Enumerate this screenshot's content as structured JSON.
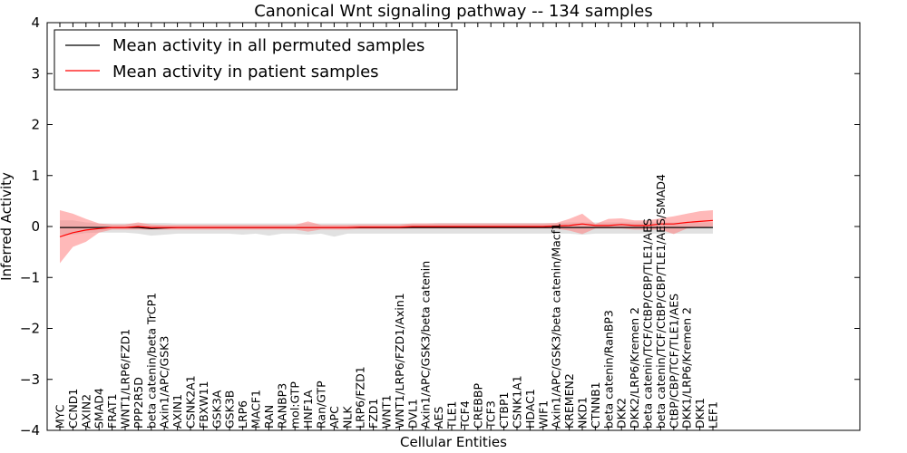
{
  "chart_data": {
    "type": "line",
    "title": "Canonical Wnt signaling pathway -- 134 samples",
    "xlabel": "Cellular Entities",
    "ylabel": "Inferred Activity",
    "ylim": [
      -4,
      4
    ],
    "yticks": [
      -4,
      -3,
      -2,
      -1,
      0,
      1,
      2,
      3,
      4
    ],
    "legend_position": "upper-left",
    "categories": [
      "MYC",
      "CCND1",
      "AXIN2",
      "SMAD4",
      "FRAT1",
      "WNT1/LRP6/FZD1",
      "PPP2R5D",
      "beta catenin/beta TrCP1",
      "Axin1/APC/GSK3",
      "AXIN1",
      "CSNK2A1",
      "FBXW11",
      "GSK3A",
      "GSK3B",
      "LRP6",
      "MACF1",
      "RAN",
      "RANBP3",
      "mol:GTP",
      "HNF1A",
      "Ran/GTP",
      "APC",
      "NLK",
      "LRP6/FZD1",
      "FZD1",
      "WNT1",
      "WNT1/LRP6/FZD1/Axin1",
      "DVL1",
      "Axin1/APC/GSK3/beta catenin",
      "AES",
      "TLE1",
      "TCF4",
      "CREBBP",
      "TCF3",
      "CTBP1",
      "CSNK1A1",
      "HDAC1",
      "WIF1",
      "Axin1/APC/GSK3/beta catenin/Macf1",
      "KREMEN2",
      "NKD1",
      "CTNNB1",
      "beta catenin/RanBP3",
      "DKK2",
      "DKK2/LRP6/Kremen 2",
      "beta catenin/TCF/CtBP/CBP/TLE1/AES",
      "beta catenin/TCF/CtBP/CBP/TLE1/AES/SMAD4",
      "CtBP/CBP/TCF/TLE1/AES",
      "DKK1/LRP6/Kremen 2",
      "DKK1",
      "LEF1"
    ],
    "series": [
      {
        "name": "Mean activity in all permuted samples",
        "color": "#000000",
        "band_color": "#bdbdbd",
        "values": [
          -0.02,
          -0.02,
          -0.02,
          -0.02,
          -0.02,
          -0.02,
          -0.02,
          -0.04,
          -0.03,
          -0.02,
          -0.02,
          -0.02,
          -0.02,
          -0.02,
          -0.02,
          -0.02,
          -0.02,
          -0.02,
          -0.02,
          -0.02,
          -0.02,
          -0.02,
          -0.02,
          -0.02,
          -0.02,
          -0.02,
          -0.02,
          -0.02,
          -0.02,
          -0.02,
          -0.02,
          -0.02,
          -0.02,
          -0.02,
          -0.02,
          -0.02,
          -0.02,
          -0.02,
          -0.02,
          -0.02,
          -0.02,
          -0.02,
          -0.02,
          -0.02,
          -0.02,
          -0.02,
          -0.02,
          -0.02,
          -0.02,
          -0.02,
          -0.02
        ],
        "upper": [
          0.12,
          0.12,
          0.08,
          0.06,
          0.06,
          0.06,
          0.06,
          0.07,
          0.07,
          0.06,
          0.06,
          0.06,
          0.06,
          0.06,
          0.06,
          0.06,
          0.06,
          0.06,
          0.06,
          0.06,
          0.06,
          0.06,
          0.06,
          0.06,
          0.06,
          0.06,
          0.06,
          0.06,
          0.06,
          0.07,
          0.07,
          0.07,
          0.07,
          0.07,
          0.07,
          0.07,
          0.07,
          0.07,
          0.07,
          0.08,
          0.08,
          0.08,
          0.08,
          0.08,
          0.08,
          0.08,
          0.08,
          0.08,
          0.08,
          0.08,
          0.08
        ],
        "lower": [
          -0.16,
          -0.16,
          -0.13,
          -0.12,
          -0.12,
          -0.12,
          -0.14,
          -0.18,
          -0.16,
          -0.14,
          -0.14,
          -0.14,
          -0.14,
          -0.14,
          -0.16,
          -0.14,
          -0.18,
          -0.14,
          -0.14,
          -0.16,
          -0.14,
          -0.2,
          -0.14,
          -0.14,
          -0.14,
          -0.14,
          -0.14,
          -0.14,
          -0.14,
          -0.14,
          -0.14,
          -0.14,
          -0.14,
          -0.14,
          -0.14,
          -0.14,
          -0.14,
          -0.14,
          -0.14,
          -0.14,
          -0.16,
          -0.14,
          -0.14,
          -0.14,
          -0.14,
          -0.14,
          -0.14,
          -0.14,
          -0.14,
          -0.14,
          -0.14
        ]
      },
      {
        "name": "Mean activity in patient samples",
        "color": "#ff0000",
        "band_color": "#ff7f7f",
        "values": [
          -0.2,
          -0.12,
          -0.07,
          -0.04,
          -0.02,
          -0.02,
          0.0,
          -0.02,
          -0.02,
          -0.02,
          -0.02,
          -0.02,
          -0.02,
          -0.02,
          -0.02,
          -0.02,
          -0.02,
          -0.02,
          -0.02,
          -0.02,
          -0.02,
          -0.02,
          -0.02,
          -0.01,
          -0.01,
          -0.01,
          -0.01,
          0.0,
          0.0,
          0.0,
          0.0,
          0.0,
          0.0,
          0.0,
          0.0,
          0.0,
          0.0,
          0.0,
          0.01,
          0.02,
          0.05,
          0.02,
          0.02,
          0.04,
          0.02,
          0.02,
          0.05,
          0.05,
          0.08,
          0.1,
          0.12
        ],
        "upper": [
          0.32,
          0.25,
          0.15,
          0.06,
          0.04,
          0.04,
          0.08,
          0.04,
          0.03,
          0.03,
          0.03,
          0.03,
          0.03,
          0.03,
          0.03,
          0.03,
          0.03,
          0.03,
          0.03,
          0.1,
          0.03,
          0.03,
          0.03,
          0.04,
          0.04,
          0.04,
          0.04,
          0.06,
          0.06,
          0.06,
          0.06,
          0.06,
          0.06,
          0.06,
          0.06,
          0.06,
          0.06,
          0.06,
          0.07,
          0.15,
          0.25,
          0.05,
          0.15,
          0.16,
          0.12,
          0.12,
          0.16,
          0.2,
          0.25,
          0.3,
          0.32
        ],
        "lower": [
          -0.72,
          -0.4,
          -0.3,
          -0.12,
          -0.06,
          -0.06,
          -0.06,
          -0.06,
          -0.06,
          -0.06,
          -0.06,
          -0.06,
          -0.06,
          -0.06,
          -0.06,
          -0.06,
          -0.06,
          -0.06,
          -0.06,
          -0.1,
          -0.06,
          -0.06,
          -0.06,
          -0.05,
          -0.05,
          -0.05,
          -0.05,
          -0.04,
          -0.04,
          -0.04,
          -0.04,
          -0.04,
          -0.04,
          -0.04,
          -0.04,
          -0.04,
          -0.04,
          -0.04,
          -0.04,
          -0.08,
          -0.15,
          -0.04,
          -0.04,
          -0.04,
          -0.06,
          -0.06,
          -0.06,
          -0.15,
          -0.04,
          -0.02,
          0.0
        ]
      }
    ]
  }
}
